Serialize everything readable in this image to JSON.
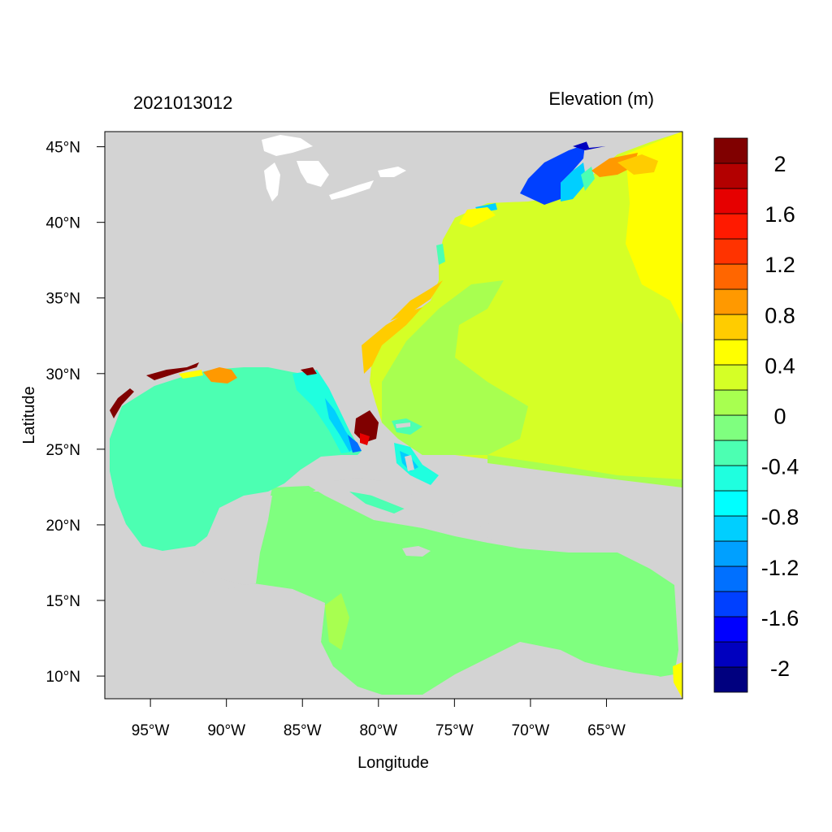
{
  "figure": {
    "left_title": "2021013012",
    "right_title": "Elevation (m)",
    "xlabel": "Longitude",
    "ylabel": "Latitude"
  },
  "map": {
    "type": "filled-contour map",
    "region": "Gulf of Mexico, Caribbean Sea and western North Atlantic",
    "lon_range": [
      -98,
      -60
    ],
    "lat_range": [
      8.5,
      46
    ],
    "land_color": "#d3d3d3",
    "lon_ticks": [
      {
        "value": -95,
        "label": "95°W"
      },
      {
        "value": -90,
        "label": "90°W"
      },
      {
        "value": -85,
        "label": "85°W"
      },
      {
        "value": -80,
        "label": "80°W"
      },
      {
        "value": -75,
        "label": "75°W"
      },
      {
        "value": -70,
        "label": "70°W"
      },
      {
        "value": -65,
        "label": "65°W"
      }
    ],
    "lat_ticks": [
      {
        "value": 45,
        "label": "45°N"
      },
      {
        "value": 40,
        "label": "40°N"
      },
      {
        "value": 35,
        "label": "35°N"
      },
      {
        "value": 30,
        "label": "30°N"
      },
      {
        "value": 25,
        "label": "25°N"
      },
      {
        "value": 20,
        "label": "20°N"
      },
      {
        "value": 15,
        "label": "15°N"
      },
      {
        "value": 10,
        "label": "10°N"
      }
    ]
  },
  "colorbar": {
    "colors": [
      "#00007f",
      "#0000bf",
      "#0000ff",
      "#0040ff",
      "#0070ff",
      "#00a0ff",
      "#00cfff",
      "#00ffff",
      "#1fffdf",
      "#4cffb2",
      "#7fff7f",
      "#a8ff50",
      "#d5ff26",
      "#ffff00",
      "#ffcc00",
      "#ff9900",
      "#ff6600",
      "#ff3300",
      "#ff1a00",
      "#e60000",
      "#b30000",
      "#800000"
    ],
    "labels": [
      {
        "value": 2,
        "label": "2"
      },
      {
        "value": 1.6,
        "label": "1.6"
      },
      {
        "value": 1.2,
        "label": "1.2"
      },
      {
        "value": 0.8,
        "label": "0.8"
      },
      {
        "value": 0.4,
        "label": "0.4"
      },
      {
        "value": 0,
        "label": "0"
      },
      {
        "value": -0.4,
        "label": "-0.4"
      },
      {
        "value": -0.8,
        "label": "-0.8"
      },
      {
        "value": -1.2,
        "label": "-1.2"
      },
      {
        "value": -1.6,
        "label": "-1.6"
      },
      {
        "value": -2,
        "label": "-2"
      }
    ]
  }
}
